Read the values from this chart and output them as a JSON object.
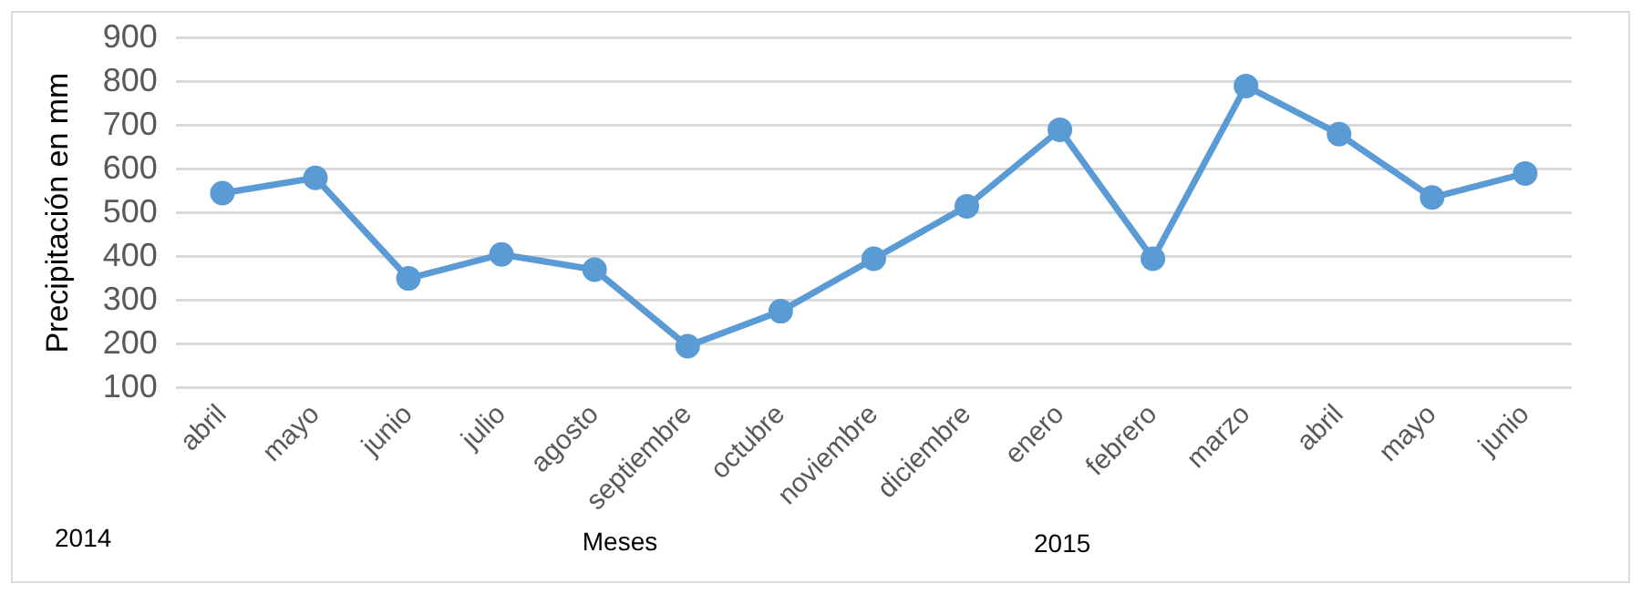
{
  "chart_data": {
    "type": "line",
    "ylabel": "Precipitación en mm",
    "xlabel": "Meses",
    "categories": [
      "abril",
      "mayo",
      "junio",
      "julio",
      "agosto",
      "septiembre",
      "octubre",
      "noviembre",
      "diciembre",
      "enero",
      "febrero",
      "marzo",
      "abril",
      "mayo",
      "junio"
    ],
    "series": [
      {
        "color": "#5b9bd5",
        "values": [
          545,
          580,
          350,
          405,
          370,
          195,
          275,
          395,
          515,
          690,
          395,
          790,
          680,
          535,
          590
        ]
      }
    ],
    "ylim": [
      100,
      900
    ],
    "yticks": [
      100,
      200,
      300,
      400,
      500,
      600,
      700,
      800,
      900
    ],
    "grid": "y",
    "legend": false,
    "marker": "circle",
    "line_style": "solid",
    "annotations": [
      "2014",
      "2015"
    ]
  }
}
